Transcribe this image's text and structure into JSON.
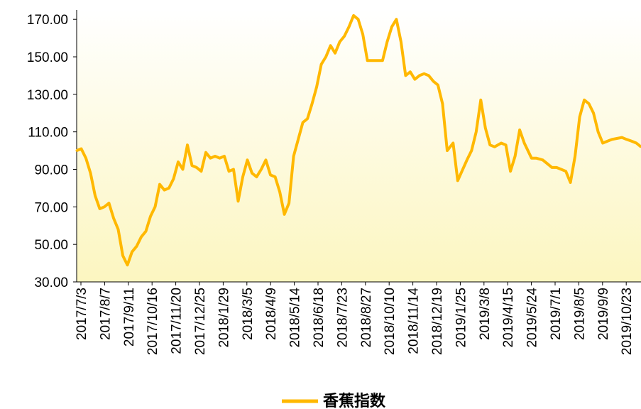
{
  "chart_data": {
    "type": "line",
    "title": "",
    "xlabel": "",
    "ylabel": "",
    "ylim": [
      30,
      175
    ],
    "y_ticks": [
      "30.00",
      "50.00",
      "70.00",
      "90.00",
      "110.00",
      "130.00",
      "150.00",
      "170.00"
    ],
    "x_tick_labels": [
      "2017/7/3",
      "2017/8/7",
      "2017/9/11",
      "2017/10/16",
      "2017/11/20",
      "2017/12/25",
      "2018/1/29",
      "2018/3/5",
      "2018/4/9",
      "2018/5/14",
      "2018/6/18",
      "2018/7/23",
      "2018/8/27",
      "2018/10/10",
      "2018/11/14",
      "2018/12/19",
      "2019/1/25",
      "2019/3/8",
      "2019/4/15",
      "2019/5/24",
      "2019/7/1",
      "2019/8/5",
      "2019/9/9",
      "2019/10/23"
    ],
    "legend": {
      "position": "bottom",
      "entries": [
        "香蕉指数"
      ]
    },
    "grid": false,
    "background": "gradient light yellow",
    "colors": {
      "line": "#FFB800",
      "axis": "#000000",
      "bg_top": "#FFFFFF",
      "bg_bottom": "#FCF6C0"
    },
    "series": [
      {
        "name": "香蕉指数",
        "points": [
          [
            "2017/7/3",
            100
          ],
          [
            "2017/7/10",
            101
          ],
          [
            "2017/7/17",
            96
          ],
          [
            "2017/7/24",
            88
          ],
          [
            "2017/7/31",
            76
          ],
          [
            "2017/8/7",
            69
          ],
          [
            "2017/8/14",
            70
          ],
          [
            "2017/8/21",
            72
          ],
          [
            "2017/8/28",
            64
          ],
          [
            "2017/9/4",
            58
          ],
          [
            "2017/9/11",
            44
          ],
          [
            "2017/9/18",
            39
          ],
          [
            "2017/9/25",
            46
          ],
          [
            "2017/10/2",
            49
          ],
          [
            "2017/10/9",
            54
          ],
          [
            "2017/10/16",
            57
          ],
          [
            "2017/10/23",
            65
          ],
          [
            "2017/10/30",
            70
          ],
          [
            "2017/11/6",
            82
          ],
          [
            "2017/11/13",
            79
          ],
          [
            "2017/11/20",
            80
          ],
          [
            "2017/11/27",
            85
          ],
          [
            "2017/12/4",
            94
          ],
          [
            "2017/12/11",
            90
          ],
          [
            "2017/12/18",
            103
          ],
          [
            "2017/12/25",
            92
          ],
          [
            "2018/1/1",
            91
          ],
          [
            "2018/1/8",
            89
          ],
          [
            "2018/1/15",
            99
          ],
          [
            "2018/1/22",
            96
          ],
          [
            "2018/1/29",
            97
          ],
          [
            "2018/2/5",
            96
          ],
          [
            "2018/2/12",
            97
          ],
          [
            "2018/2/19",
            89
          ],
          [
            "2018/2/26",
            90
          ],
          [
            "2018/3/5",
            73
          ],
          [
            "2018/3/12",
            86
          ],
          [
            "2018/3/19",
            95
          ],
          [
            "2018/3/26",
            88
          ],
          [
            "2018/4/2",
            86
          ],
          [
            "2018/4/9",
            90
          ],
          [
            "2018/4/16",
            95
          ],
          [
            "2018/4/23",
            87
          ],
          [
            "2018/4/30",
            86
          ],
          [
            "2018/5/7",
            78
          ],
          [
            "2018/5/14",
            66
          ],
          [
            "2018/5/21",
            72
          ],
          [
            "2018/5/28",
            97
          ],
          [
            "2018/6/4",
            106
          ],
          [
            "2018/6/11",
            115
          ],
          [
            "2018/6/18",
            117
          ],
          [
            "2018/6/25",
            125
          ],
          [
            "2018/7/2",
            134
          ],
          [
            "2018/7/9",
            146
          ],
          [
            "2018/7/16",
            150
          ],
          [
            "2018/7/23",
            156
          ],
          [
            "2018/7/30",
            152
          ],
          [
            "2018/8/6",
            158
          ],
          [
            "2018/8/13",
            161
          ],
          [
            "2018/8/20",
            166
          ],
          [
            "2018/8/27",
            172
          ],
          [
            "2018/9/3",
            170
          ],
          [
            "2018/9/10",
            162
          ],
          [
            "2018/9/17",
            148
          ],
          [
            "2018/10/10",
            148
          ],
          [
            "2018/10/17",
            158
          ],
          [
            "2018/10/24",
            166
          ],
          [
            "2018/10/31",
            170
          ],
          [
            "2018/11/7",
            158
          ],
          [
            "2018/11/14",
            140
          ],
          [
            "2018/11/21",
            142
          ],
          [
            "2018/11/28",
            138
          ],
          [
            "2018/12/5",
            140
          ],
          [
            "2018/12/12",
            141
          ],
          [
            "2018/12/19",
            140
          ],
          [
            "2018/12/26",
            137
          ],
          [
            "2019/1/2",
            135
          ],
          [
            "2019/1/9",
            125
          ],
          [
            "2019/1/16",
            100
          ],
          [
            "2019/1/25",
            104
          ],
          [
            "2019/2/1",
            84
          ],
          [
            "2019/2/15",
            95
          ],
          [
            "2019/2/22",
            100
          ],
          [
            "2019/3/1",
            110
          ],
          [
            "2019/3/8",
            127
          ],
          [
            "2019/3/15",
            112
          ],
          [
            "2019/3/22",
            103
          ],
          [
            "2019/3/29",
            102
          ],
          [
            "2019/4/8",
            104
          ],
          [
            "2019/4/15",
            103
          ],
          [
            "2019/4/22",
            89
          ],
          [
            "2019/4/29",
            97
          ],
          [
            "2019/5/6",
            111
          ],
          [
            "2019/5/13",
            104
          ],
          [
            "2019/5/24",
            96
          ],
          [
            "2019/5/31",
            96
          ],
          [
            "2019/6/10",
            95
          ],
          [
            "2019/6/17",
            93
          ],
          [
            "2019/6/24",
            91
          ],
          [
            "2019/7/1",
            91
          ],
          [
            "2019/7/8",
            90
          ],
          [
            "2019/7/15",
            89
          ],
          [
            "2019/7/22",
            83
          ],
          [
            "2019/7/29",
            97
          ],
          [
            "2019/8/5",
            118
          ],
          [
            "2019/8/12",
            127
          ],
          [
            "2019/8/19",
            125
          ],
          [
            "2019/8/26",
            120
          ],
          [
            "2019/9/2",
            110
          ],
          [
            "2019/9/9",
            104
          ],
          [
            "2019/9/16",
            105
          ],
          [
            "2019/9/23",
            106
          ],
          [
            "2019/10/8",
            107
          ],
          [
            "2019/10/15",
            106
          ],
          [
            "2019/10/23",
            105
          ],
          [
            "2019/10/30",
            104
          ],
          [
            "2019/11/6",
            102
          ]
        ]
      }
    ]
  }
}
